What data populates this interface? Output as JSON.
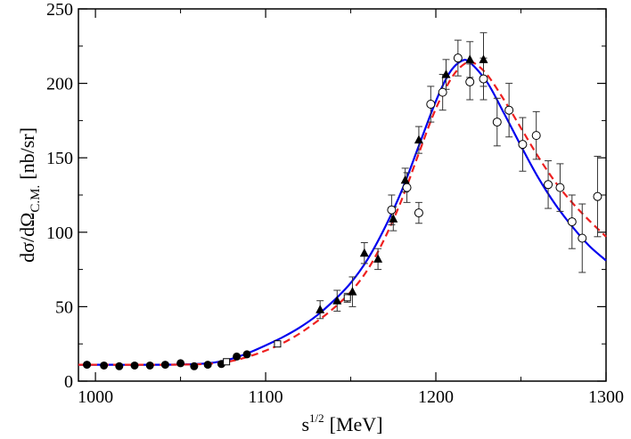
{
  "chart_data": {
    "type": "scatter",
    "xlabel_main": "s",
    "xlabel_sup": "1/2",
    "xlabel_unit": "[MeV]",
    "ylabel_main": "dσ/dΩ",
    "ylabel_sub": "C.M.",
    "ylabel_unit": "[nb/sr]",
    "xlim": [
      990,
      1300
    ],
    "ylim": [
      0,
      250
    ],
    "xticks": [
      1000,
      1100,
      1200,
      1300
    ],
    "yticks": [
      0,
      50,
      100,
      150,
      200,
      250
    ],
    "grid": false,
    "series": [
      {
        "marker": "filled-circle",
        "color": "#000000",
        "points": [
          {
            "x": 995,
            "y": 11,
            "err": 1
          },
          {
            "x": 1005,
            "y": 10.5,
            "err": 1
          },
          {
            "x": 1014,
            "y": 10,
            "err": 1
          },
          {
            "x": 1023,
            "y": 10.5,
            "err": 1
          },
          {
            "x": 1032,
            "y": 10.5,
            "err": 1
          },
          {
            "x": 1041,
            "y": 11,
            "err": 1
          },
          {
            "x": 1050,
            "y": 12,
            "err": 1
          },
          {
            "x": 1058,
            "y": 10,
            "err": 1
          },
          {
            "x": 1066,
            "y": 11,
            "err": 1
          },
          {
            "x": 1074,
            "y": 11.5,
            "err": 1
          },
          {
            "x": 1083,
            "y": 16.5,
            "err": 1.5
          },
          {
            "x": 1089,
            "y": 18,
            "err": 1.5
          }
        ]
      },
      {
        "marker": "open-square",
        "color": "#000000",
        "points": [
          {
            "x": 1077,
            "y": 13,
            "err": 1.5
          },
          {
            "x": 1107,
            "y": 25,
            "err": 1.5
          },
          {
            "x": 1148,
            "y": 56,
            "err": 3
          }
        ]
      },
      {
        "marker": "filled-triangle",
        "color": "#000000",
        "points": [
          {
            "x": 1132,
            "y": 48,
            "err": 6
          },
          {
            "x": 1142,
            "y": 54,
            "err": 7
          },
          {
            "x": 1151,
            "y": 60,
            "err": 10
          },
          {
            "x": 1158,
            "y": 86,
            "err": 7
          },
          {
            "x": 1166,
            "y": 82,
            "err": 7
          },
          {
            "x": 1175,
            "y": 109,
            "err": 8
          },
          {
            "x": 1182,
            "y": 135,
            "err": 8
          },
          {
            "x": 1190,
            "y": 162,
            "err": 9
          },
          {
            "x": 1206,
            "y": 206,
            "err": 10
          },
          {
            "x": 1220,
            "y": 216,
            "err": 12
          },
          {
            "x": 1228,
            "y": 216,
            "err": 18
          }
        ]
      },
      {
        "marker": "open-circle",
        "color": "#000000",
        "points": [
          {
            "x": 1174,
            "y": 115,
            "err": 10
          },
          {
            "x": 1183,
            "y": 130,
            "err": 10
          },
          {
            "x": 1190,
            "y": 113,
            "err": 7
          },
          {
            "x": 1197,
            "y": 186,
            "err": 12
          },
          {
            "x": 1204,
            "y": 194,
            "err": 12
          },
          {
            "x": 1213,
            "y": 217,
            "err": 12
          },
          {
            "x": 1220,
            "y": 201,
            "err": 12
          },
          {
            "x": 1228,
            "y": 203,
            "err": 14
          },
          {
            "x": 1236,
            "y": 174,
            "err": 16
          },
          {
            "x": 1243,
            "y": 182,
            "err": 18
          },
          {
            "x": 1251,
            "y": 159,
            "err": 18
          },
          {
            "x": 1259,
            "y": 165,
            "err": 16
          },
          {
            "x": 1266,
            "y": 132,
            "err": 16
          },
          {
            "x": 1273,
            "y": 130,
            "err": 16
          },
          {
            "x": 1280,
            "y": 107,
            "err": 18
          },
          {
            "x": 1286,
            "y": 96,
            "err": 23
          },
          {
            "x": 1295,
            "y": 124,
            "err": 27
          }
        ]
      }
    ],
    "curves": [
      {
        "style": "solid",
        "color": "#0000ee",
        "points": [
          {
            "x": 990,
            "y": 11
          },
          {
            "x": 1040,
            "y": 11
          },
          {
            "x": 1060,
            "y": 11.5
          },
          {
            "x": 1070,
            "y": 12.5
          },
          {
            "x": 1080,
            "y": 15
          },
          {
            "x": 1090,
            "y": 19
          },
          {
            "x": 1100,
            "y": 24
          },
          {
            "x": 1110,
            "y": 29.5
          },
          {
            "x": 1120,
            "y": 36
          },
          {
            "x": 1130,
            "y": 44
          },
          {
            "x": 1140,
            "y": 54
          },
          {
            "x": 1150,
            "y": 66
          },
          {
            "x": 1160,
            "y": 82
          },
          {
            "x": 1170,
            "y": 103
          },
          {
            "x": 1180,
            "y": 128
          },
          {
            "x": 1190,
            "y": 158
          },
          {
            "x": 1200,
            "y": 188
          },
          {
            "x": 1208,
            "y": 207
          },
          {
            "x": 1215,
            "y": 215
          },
          {
            "x": 1220,
            "y": 214
          },
          {
            "x": 1230,
            "y": 201
          },
          {
            "x": 1240,
            "y": 180
          },
          {
            "x": 1250,
            "y": 158
          },
          {
            "x": 1260,
            "y": 137
          },
          {
            "x": 1270,
            "y": 119
          },
          {
            "x": 1280,
            "y": 104
          },
          {
            "x": 1290,
            "y": 91
          },
          {
            "x": 1300,
            "y": 81
          }
        ]
      },
      {
        "style": "dashed",
        "color": "#ee2020",
        "points": [
          {
            "x": 990,
            "y": 11
          },
          {
            "x": 1040,
            "y": 11
          },
          {
            "x": 1060,
            "y": 11.3
          },
          {
            "x": 1070,
            "y": 12
          },
          {
            "x": 1080,
            "y": 13.5
          },
          {
            "x": 1090,
            "y": 16.5
          },
          {
            "x": 1100,
            "y": 20.5
          },
          {
            "x": 1110,
            "y": 25.5
          },
          {
            "x": 1120,
            "y": 32
          },
          {
            "x": 1130,
            "y": 40
          },
          {
            "x": 1140,
            "y": 49
          },
          {
            "x": 1150,
            "y": 60
          },
          {
            "x": 1160,
            "y": 75
          },
          {
            "x": 1170,
            "y": 96
          },
          {
            "x": 1180,
            "y": 122
          },
          {
            "x": 1190,
            "y": 153
          },
          {
            "x": 1200,
            "y": 183
          },
          {
            "x": 1210,
            "y": 205
          },
          {
            "x": 1218,
            "y": 214
          },
          {
            "x": 1222,
            "y": 214
          },
          {
            "x": 1230,
            "y": 206
          },
          {
            "x": 1240,
            "y": 189
          },
          {
            "x": 1250,
            "y": 170
          },
          {
            "x": 1260,
            "y": 151
          },
          {
            "x": 1270,
            "y": 134
          },
          {
            "x": 1280,
            "y": 120
          },
          {
            "x": 1290,
            "y": 108
          },
          {
            "x": 1300,
            "y": 97
          }
        ]
      }
    ]
  }
}
